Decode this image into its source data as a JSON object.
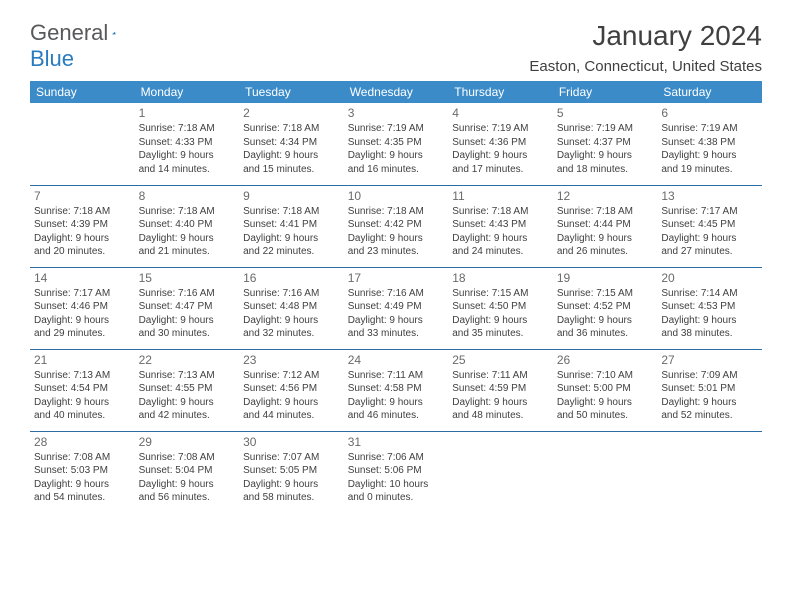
{
  "logo": {
    "text1": "General",
    "text2": "Blue"
  },
  "title": "January 2024",
  "location": "Easton, Connecticut, United States",
  "header_bg": "#3b8bc9",
  "divider_color": "#2b6ca3",
  "day_headers": [
    "Sunday",
    "Monday",
    "Tuesday",
    "Wednesday",
    "Thursday",
    "Friday",
    "Saturday"
  ],
  "weeks": [
    [
      null,
      {
        "n": "1",
        "sr": "Sunrise: 7:18 AM",
        "ss": "Sunset: 4:33 PM",
        "d1": "Daylight: 9 hours",
        "d2": "and 14 minutes."
      },
      {
        "n": "2",
        "sr": "Sunrise: 7:18 AM",
        "ss": "Sunset: 4:34 PM",
        "d1": "Daylight: 9 hours",
        "d2": "and 15 minutes."
      },
      {
        "n": "3",
        "sr": "Sunrise: 7:19 AM",
        "ss": "Sunset: 4:35 PM",
        "d1": "Daylight: 9 hours",
        "d2": "and 16 minutes."
      },
      {
        "n": "4",
        "sr": "Sunrise: 7:19 AM",
        "ss": "Sunset: 4:36 PM",
        "d1": "Daylight: 9 hours",
        "d2": "and 17 minutes."
      },
      {
        "n": "5",
        "sr": "Sunrise: 7:19 AM",
        "ss": "Sunset: 4:37 PM",
        "d1": "Daylight: 9 hours",
        "d2": "and 18 minutes."
      },
      {
        "n": "6",
        "sr": "Sunrise: 7:19 AM",
        "ss": "Sunset: 4:38 PM",
        "d1": "Daylight: 9 hours",
        "d2": "and 19 minutes."
      }
    ],
    [
      {
        "n": "7",
        "sr": "Sunrise: 7:18 AM",
        "ss": "Sunset: 4:39 PM",
        "d1": "Daylight: 9 hours",
        "d2": "and 20 minutes."
      },
      {
        "n": "8",
        "sr": "Sunrise: 7:18 AM",
        "ss": "Sunset: 4:40 PM",
        "d1": "Daylight: 9 hours",
        "d2": "and 21 minutes."
      },
      {
        "n": "9",
        "sr": "Sunrise: 7:18 AM",
        "ss": "Sunset: 4:41 PM",
        "d1": "Daylight: 9 hours",
        "d2": "and 22 minutes."
      },
      {
        "n": "10",
        "sr": "Sunrise: 7:18 AM",
        "ss": "Sunset: 4:42 PM",
        "d1": "Daylight: 9 hours",
        "d2": "and 23 minutes."
      },
      {
        "n": "11",
        "sr": "Sunrise: 7:18 AM",
        "ss": "Sunset: 4:43 PM",
        "d1": "Daylight: 9 hours",
        "d2": "and 24 minutes."
      },
      {
        "n": "12",
        "sr": "Sunrise: 7:18 AM",
        "ss": "Sunset: 4:44 PM",
        "d1": "Daylight: 9 hours",
        "d2": "and 26 minutes."
      },
      {
        "n": "13",
        "sr": "Sunrise: 7:17 AM",
        "ss": "Sunset: 4:45 PM",
        "d1": "Daylight: 9 hours",
        "d2": "and 27 minutes."
      }
    ],
    [
      {
        "n": "14",
        "sr": "Sunrise: 7:17 AM",
        "ss": "Sunset: 4:46 PM",
        "d1": "Daylight: 9 hours",
        "d2": "and 29 minutes."
      },
      {
        "n": "15",
        "sr": "Sunrise: 7:16 AM",
        "ss": "Sunset: 4:47 PM",
        "d1": "Daylight: 9 hours",
        "d2": "and 30 minutes."
      },
      {
        "n": "16",
        "sr": "Sunrise: 7:16 AM",
        "ss": "Sunset: 4:48 PM",
        "d1": "Daylight: 9 hours",
        "d2": "and 32 minutes."
      },
      {
        "n": "17",
        "sr": "Sunrise: 7:16 AM",
        "ss": "Sunset: 4:49 PM",
        "d1": "Daylight: 9 hours",
        "d2": "and 33 minutes."
      },
      {
        "n": "18",
        "sr": "Sunrise: 7:15 AM",
        "ss": "Sunset: 4:50 PM",
        "d1": "Daylight: 9 hours",
        "d2": "and 35 minutes."
      },
      {
        "n": "19",
        "sr": "Sunrise: 7:15 AM",
        "ss": "Sunset: 4:52 PM",
        "d1": "Daylight: 9 hours",
        "d2": "and 36 minutes."
      },
      {
        "n": "20",
        "sr": "Sunrise: 7:14 AM",
        "ss": "Sunset: 4:53 PM",
        "d1": "Daylight: 9 hours",
        "d2": "and 38 minutes."
      }
    ],
    [
      {
        "n": "21",
        "sr": "Sunrise: 7:13 AM",
        "ss": "Sunset: 4:54 PM",
        "d1": "Daylight: 9 hours",
        "d2": "and 40 minutes."
      },
      {
        "n": "22",
        "sr": "Sunrise: 7:13 AM",
        "ss": "Sunset: 4:55 PM",
        "d1": "Daylight: 9 hours",
        "d2": "and 42 minutes."
      },
      {
        "n": "23",
        "sr": "Sunrise: 7:12 AM",
        "ss": "Sunset: 4:56 PM",
        "d1": "Daylight: 9 hours",
        "d2": "and 44 minutes."
      },
      {
        "n": "24",
        "sr": "Sunrise: 7:11 AM",
        "ss": "Sunset: 4:58 PM",
        "d1": "Daylight: 9 hours",
        "d2": "and 46 minutes."
      },
      {
        "n": "25",
        "sr": "Sunrise: 7:11 AM",
        "ss": "Sunset: 4:59 PM",
        "d1": "Daylight: 9 hours",
        "d2": "and 48 minutes."
      },
      {
        "n": "26",
        "sr": "Sunrise: 7:10 AM",
        "ss": "Sunset: 5:00 PM",
        "d1": "Daylight: 9 hours",
        "d2": "and 50 minutes."
      },
      {
        "n": "27",
        "sr": "Sunrise: 7:09 AM",
        "ss": "Sunset: 5:01 PM",
        "d1": "Daylight: 9 hours",
        "d2": "and 52 minutes."
      }
    ],
    [
      {
        "n": "28",
        "sr": "Sunrise: 7:08 AM",
        "ss": "Sunset: 5:03 PM",
        "d1": "Daylight: 9 hours",
        "d2": "and 54 minutes."
      },
      {
        "n": "29",
        "sr": "Sunrise: 7:08 AM",
        "ss": "Sunset: 5:04 PM",
        "d1": "Daylight: 9 hours",
        "d2": "and 56 minutes."
      },
      {
        "n": "30",
        "sr": "Sunrise: 7:07 AM",
        "ss": "Sunset: 5:05 PM",
        "d1": "Daylight: 9 hours",
        "d2": "and 58 minutes."
      },
      {
        "n": "31",
        "sr": "Sunrise: 7:06 AM",
        "ss": "Sunset: 5:06 PM",
        "d1": "Daylight: 10 hours",
        "d2": "and 0 minutes."
      },
      null,
      null,
      null
    ]
  ]
}
